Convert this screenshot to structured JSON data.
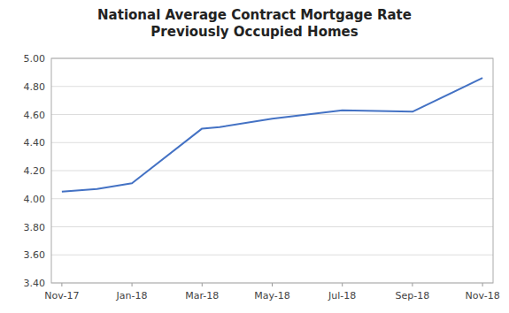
{
  "chart_data": {
    "type": "line",
    "title": "National Average Contract Mortgage Rate\nPreviously Occupied Homes",
    "x": [
      0,
      1,
      2,
      4,
      4.5,
      6,
      7,
      8,
      10,
      12
    ],
    "values": [
      4.05,
      4.07,
      4.11,
      4.5,
      4.51,
      4.57,
      4.6,
      4.63,
      4.62,
      4.86
    ],
    "color": "#4472C4",
    "xlim": [
      -0.3,
      12.3
    ],
    "xticks": [
      {
        "value": 0,
        "label": "Nov-17"
      },
      {
        "value": 2,
        "label": "Jan-18"
      },
      {
        "value": 4,
        "label": "Mar-18"
      },
      {
        "value": 6,
        "label": "May-18"
      },
      {
        "value": 8,
        "label": "Jul-18"
      },
      {
        "value": 10,
        "label": "Sep-18"
      },
      {
        "value": 12,
        "label": "Nov-18"
      }
    ],
    "ylim": [
      3.4,
      5.0
    ],
    "yticks": [
      {
        "value": 3.4,
        "label": "3.40"
      },
      {
        "value": 3.6,
        "label": "3.60"
      },
      {
        "value": 3.8,
        "label": "3.80"
      },
      {
        "value": 4.0,
        "label": "4.00"
      },
      {
        "value": 4.2,
        "label": "4.20"
      },
      {
        "value": 4.4,
        "label": "4.40"
      },
      {
        "value": 4.6,
        "label": "4.60"
      },
      {
        "value": 4.8,
        "label": "4.80"
      },
      {
        "value": 5.0,
        "label": "5.00"
      }
    ],
    "grid": true
  }
}
